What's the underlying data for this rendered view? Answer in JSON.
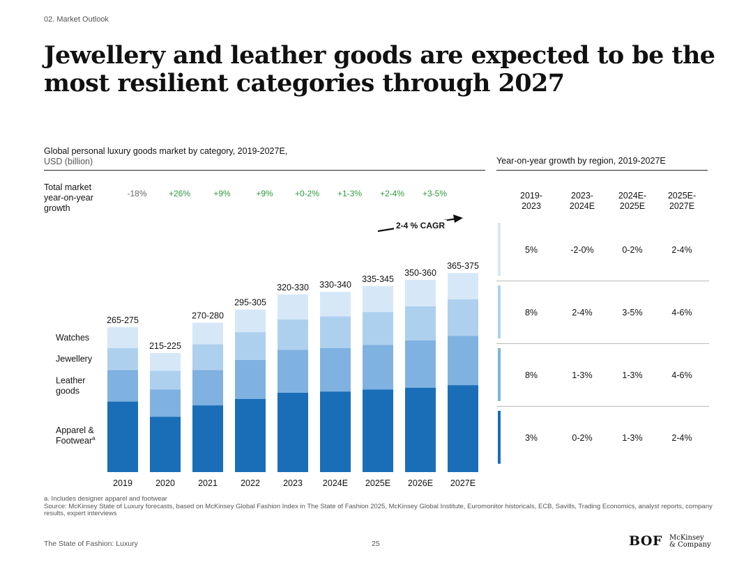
{
  "header": {
    "section": "02. Market Outlook",
    "title": "Jewellery and leather goods are expected to be the most resilient categories through 2027"
  },
  "chart_data": {
    "type": "bar",
    "stacked": true,
    "title": "Global personal luxury goods market by category, 2019-2027E,",
    "unit_label": "USD (billion)",
    "categories": [
      "2019",
      "2020",
      "2021",
      "2022",
      "2023",
      "2024E",
      "2025E",
      "2026E",
      "2027E"
    ],
    "series": [
      {
        "name": "Apparel & Footwear",
        "superscript": "a",
        "color": "#1a6eb8",
        "values": [
          112,
          88,
          106,
          116,
          126,
          128,
          131,
          134,
          138
        ]
      },
      {
        "name": "Leather goods",
        "color": "#7fb2e0",
        "values": [
          50,
          43,
          56,
          62,
          68,
          69,
          71,
          75,
          78
        ]
      },
      {
        "name": "Jewellery",
        "color": "#aed0ef",
        "values": [
          35,
          30,
          41,
          44,
          48,
          50,
          52,
          54,
          58
        ]
      },
      {
        "name": "Watches",
        "color": "#d6e8f8",
        "values": [
          33,
          28,
          34,
          36,
          40,
          39,
          41,
          42,
          42
        ]
      }
    ],
    "total_labels": [
      "265-275",
      "215-225",
      "270-280",
      "295-305",
      "320-330",
      "330-340",
      "335-345",
      "350-360",
      "365-375"
    ],
    "yoy_label": "Total market year-on-year growth",
    "yoy_growth": [
      "-18%",
      "+26%",
      "+9%",
      "+9%",
      "+0-2%",
      "+1-3%",
      "+2-4%",
      "+3-5%"
    ],
    "cagr_annotation": "2-4 % CAGR",
    "ylim": [
      0,
      400
    ]
  },
  "regional": {
    "title": "Year-on-year growth by region, 2019-2027E",
    "columns": [
      "2019-2023",
      "2023-2024E",
      "2024E-2025E",
      "2025E-2027E"
    ],
    "rows": [
      {
        "color": "#d6e8f8",
        "values": [
          "5%",
          "-2-0%",
          "0-2%",
          "2-4%"
        ]
      },
      {
        "color": "#aed0ef",
        "values": [
          "8%",
          "2-4%",
          "3-5%",
          "4-6%"
        ]
      },
      {
        "color": "#7fb2e0",
        "values": [
          "8%",
          "1-3%",
          "1-3%",
          "4-6%"
        ]
      },
      {
        "color": "#1a6eb8",
        "values": [
          "3%",
          "0-2%",
          "1-3%",
          "2-4%"
        ]
      }
    ]
  },
  "footnote": {
    "note": "a. Includes designer apparel and footwear",
    "source": "Source: McKinsey State of Luxury forecasts, based on McKinsey Global Fashion Index in The State of Fashion 2025, McKinsey Global Institute, Euromonitor historicals, ECB, Savills, Trading Economics, analyst reports, company results, expert interviews"
  },
  "footer": {
    "publication": "The State of Fashion: Luxury",
    "page": "25",
    "bof_logo": "BOF",
    "mckinsey_line1": "McKinsey",
    "mckinsey_line2": "& Company"
  }
}
